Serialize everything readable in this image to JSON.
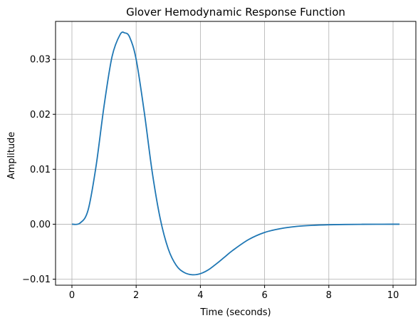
{
  "chart_data": {
    "type": "line",
    "title": "Glover Hemodynamic Response Function",
    "xlabel": "Time (seconds)",
    "ylabel": "Amplitude",
    "xlim": [
      -0.51,
      10.71
    ],
    "ylim": [
      -0.0111,
      0.0369
    ],
    "grid": true,
    "line_color": "#1f77b4",
    "x_ticks": [
      0,
      2,
      4,
      6,
      8,
      10
    ],
    "x_tick_labels": [
      "0",
      "2",
      "4",
      "6",
      "8",
      "10"
    ],
    "y_ticks": [
      -0.01,
      0.0,
      0.01,
      0.02,
      0.03
    ],
    "y_tick_labels": [
      "−0.01",
      "0.00",
      "0.01",
      "0.02",
      "0.03"
    ],
    "series": [
      {
        "x": [
          0,
          0.25,
          0.5,
          0.75,
          1.0,
          1.25,
          1.5,
          1.65,
          1.8,
          2.0,
          2.25,
          2.5,
          2.75,
          3.0,
          3.25,
          3.5,
          3.75,
          4.0,
          4.25,
          4.5,
          4.75,
          5.0,
          5.5,
          6.0,
          6.5,
          7.0,
          7.5,
          8.0,
          8.5,
          9.0,
          9.5,
          10.0,
          10.2
        ],
        "y": [
          0.0,
          0.0002,
          0.0025,
          0.0105,
          0.0215,
          0.0305,
          0.0345,
          0.0348,
          0.034,
          0.03,
          0.0205,
          0.0095,
          0.001,
          -0.0045,
          -0.0075,
          -0.0088,
          -0.0092,
          -0.009,
          -0.0083,
          -0.0072,
          -0.006,
          -0.0048,
          -0.0028,
          -0.0015,
          -0.0008,
          -0.0004,
          -0.0002,
          -0.0001,
          -5e-05,
          -2e-05,
          -1e-05,
          0.0,
          0.0
        ]
      }
    ]
  }
}
